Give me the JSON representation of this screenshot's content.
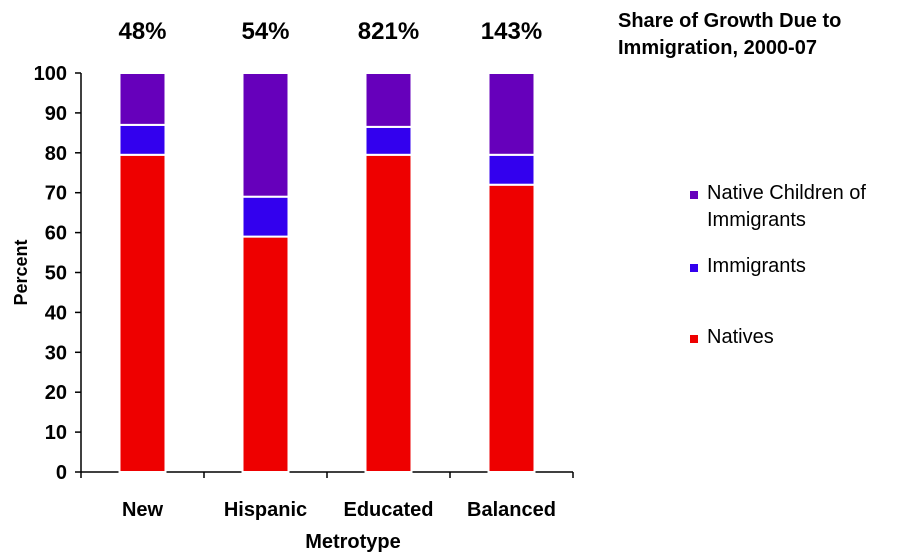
{
  "title": "Share of Growth Due to Immigration, 2000-07",
  "chart_data": {
    "type": "bar",
    "stacked": true,
    "categories": [
      "New",
      "Hispanic",
      "Educated",
      "Balanced"
    ],
    "top_labels": [
      "48%",
      "54%",
      "821%",
      "143%"
    ],
    "series": [
      {
        "name": "Natives",
        "color": "#ee0000",
        "values": [
          79.5,
          59,
          79.5,
          72
        ]
      },
      {
        "name": "Immigrants",
        "color": "#3300ee",
        "values": [
          7.5,
          10,
          7,
          7.5
        ]
      },
      {
        "name": "Native Children of Immigrants",
        "color": "#6600bb",
        "values": [
          13,
          31,
          13.5,
          20.5
        ]
      }
    ],
    "xlabel": "Metrotype",
    "ylabel": "Percent",
    "ylim": [
      0,
      100
    ],
    "yticks": [
      "0",
      "10",
      "20",
      "30",
      "40",
      "50",
      "60",
      "70",
      "80",
      "90",
      "100"
    ],
    "grid": false,
    "legend_placement": "right"
  },
  "legend": [
    {
      "label": "Native Children of Immigrants",
      "color": "#6600bb"
    },
    {
      "label": "Immigrants",
      "color": "#3300ee"
    },
    {
      "label": "Natives",
      "color": "#ee0000"
    }
  ]
}
